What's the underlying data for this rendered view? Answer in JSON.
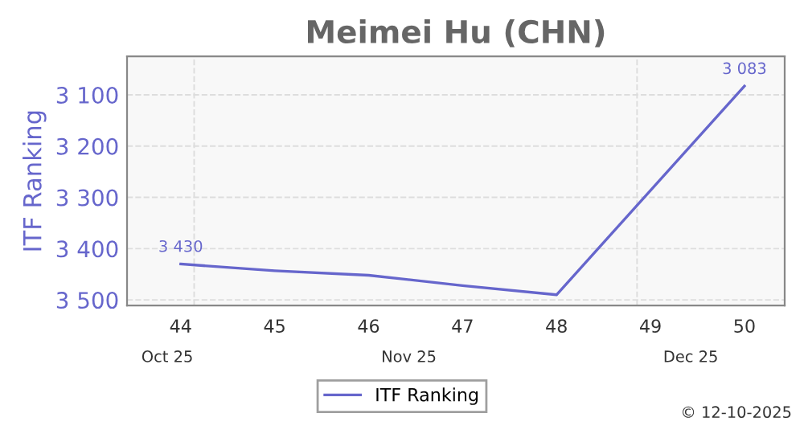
{
  "chart_data": {
    "type": "line",
    "title": "Meimei Hu (CHN)",
    "ylabel": "ITF Ranking",
    "x": [
      "2025-10-27",
      "2025-11-03",
      "2025-11-10",
      "2025-11-17",
      "2025-11-24",
      "2025-12-08"
    ],
    "series": [
      {
        "name": "ITF Ranking",
        "color": "#6666cc",
        "values": [
          3430,
          3443,
          3452,
          3472,
          3490,
          3083
        ],
        "value_labels": [
          "3 430",
          null,
          null,
          null,
          null,
          "3 083"
        ]
      }
    ],
    "xlim": [
      "2025-10-23",
      "2025-12-11"
    ],
    "xticks": [
      {
        "value": "2025-10-27",
        "label": "44"
      },
      {
        "value": "2025-11-03",
        "label": "45"
      },
      {
        "value": "2025-11-10",
        "label": "46"
      },
      {
        "value": "2025-11-17",
        "label": "47"
      },
      {
        "value": "2025-11-24",
        "label": "48"
      },
      {
        "value": "2025-12-01",
        "label": "49"
      },
      {
        "value": "2025-12-08",
        "label": "50"
      }
    ],
    "x2lim": [
      "2025-10-23",
      "2025-12-11"
    ],
    "x2ticks": [
      {
        "value": "2025-10-26",
        "label": "Oct 25"
      },
      {
        "value": "2025-11-13",
        "label": "Nov 25"
      },
      {
        "value": "2025-12-04",
        "label": "Dec 25"
      }
    ],
    "ylim": [
      3511,
      3025
    ],
    "yticks": [
      {
        "value": 3100,
        "label": "3 100"
      },
      {
        "value": 3200,
        "label": "3 200"
      },
      {
        "value": 3300,
        "label": "3 300"
      },
      {
        "value": 3400,
        "label": "3 400"
      },
      {
        "value": 3500,
        "label": "3 500"
      }
    ],
    "ref_lines": [
      {
        "axis": "x",
        "value": "2025-10-28",
        "label": null,
        "color": "#dddddd",
        "line_style": "dashed"
      },
      {
        "axis": "x",
        "value": "2025-11-30",
        "label": null,
        "color": "#dddddd",
        "line_style": "dashed"
      }
    ],
    "annotations": [
      "© 12-10-2025"
    ],
    "grid": "y",
    "legend": "bottom",
    "marker": "none",
    "line_style": "solid"
  }
}
